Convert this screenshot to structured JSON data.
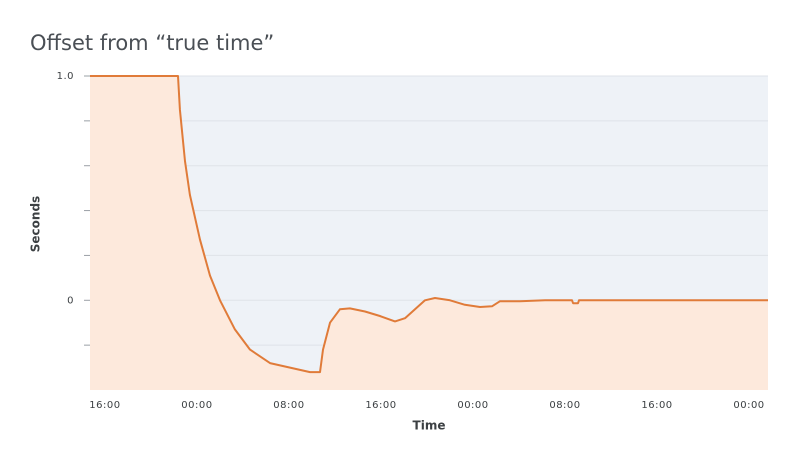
{
  "chart_data": {
    "type": "area",
    "title": "Offset from “true time”",
    "x_label": "Time",
    "y_label": "Seconds",
    "x": [
      14.7,
      22.35,
      22.52,
      22.96,
      23.39,
      24.26,
      25.13,
      26.0,
      27.3,
      28.61,
      30.35,
      32.09,
      33.83,
      34.7,
      34.96,
      35.57,
      36.43,
      37.3,
      38.61,
      39.91,
      41.22,
      42.09,
      42.96,
      43.83,
      44.7,
      46.0,
      47.3,
      48.61,
      49.65,
      50.35,
      52.09,
      54.26,
      56.61,
      56.7,
      57.13,
      57.22,
      73.65
    ],
    "series": [
      {
        "name": "Offset",
        "color": "#e07b39",
        "fill": "#fde9dc",
        "values": [
          1.0,
          1.0,
          0.85,
          0.62,
          0.47,
          0.27,
          0.11,
          0.0,
          -0.13,
          -0.22,
          -0.28,
          -0.3,
          -0.32,
          -0.32,
          -0.22,
          -0.1,
          -0.04,
          -0.036,
          -0.05,
          -0.07,
          -0.094,
          -0.08,
          -0.04,
          0.0,
          0.01,
          0.0,
          -0.02,
          -0.03,
          -0.027,
          -0.004,
          -0.004,
          0.0,
          0.0,
          -0.013,
          -0.013,
          0.0,
          0.0
        ]
      }
    ],
    "xlim": [
      14.7,
      73.65
    ],
    "xticks": [
      {
        "value": 16,
        "label": "16:00"
      },
      {
        "value": 24,
        "label": "00:00"
      },
      {
        "value": 32,
        "label": "08:00"
      },
      {
        "value": 40,
        "label": "16:00"
      },
      {
        "value": 48,
        "label": "00:00"
      },
      {
        "value": 56,
        "label": "08:00"
      },
      {
        "value": 64,
        "label": "16:00"
      },
      {
        "value": 72,
        "label": "00:00"
      }
    ],
    "ylim": [
      -0.4,
      1.0
    ],
    "yticks": [
      0,
      {
        "value": 1,
        "label": "1.0"
      }
    ],
    "yminor_ticks": [
      -0.2,
      0.2,
      0.4,
      0.6,
      0.8
    ],
    "grid": true,
    "plot_background": "#eef2f7"
  }
}
